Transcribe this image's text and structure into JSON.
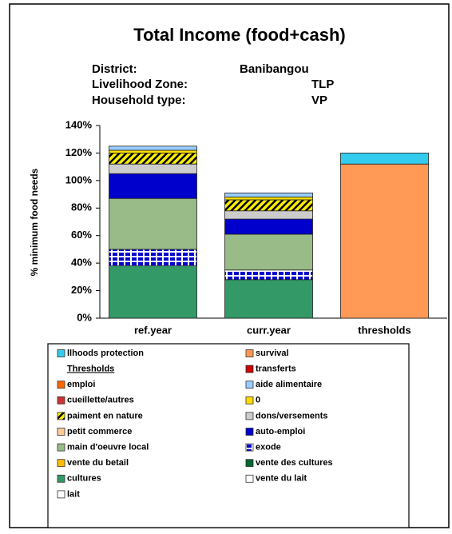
{
  "chart_data": {
    "type": "stacked_bar",
    "title": "Total Income (food+cash)",
    "info": [
      {
        "label": "District:",
        "value": "Banibangou"
      },
      {
        "label": "Livelihood Zone:",
        "value": "TLP"
      },
      {
        "label": "Household type:",
        "value": "VP"
      }
    ],
    "y_label": "% minimum food needs",
    "categories": [
      "ref.year",
      "curr.year",
      "thresholds"
    ],
    "ylim": [
      0,
      140
    ],
    "yticks": [
      {
        "value": 0,
        "label": "0%"
      },
      {
        "value": 20,
        "label": "20%"
      },
      {
        "value": 40,
        "label": "40%"
      },
      {
        "value": 60,
        "label": "60%"
      },
      {
        "value": 80,
        "label": "80%"
      },
      {
        "value": 100,
        "label": "100%"
      },
      {
        "value": 120,
        "label": "120%"
      },
      {
        "value": 140,
        "label": "140%"
      }
    ],
    "legend_heading": "Thresholds",
    "series": [
      {
        "name": "llhoods protection",
        "color": "#33ccee",
        "values": [
          0,
          0,
          8
        ]
      },
      {
        "name": "survival",
        "color": "#ff9955",
        "values": [
          0,
          0,
          112
        ]
      },
      {
        "name": "transferts",
        "color": "#cc0000",
        "values": [
          0,
          0,
          0
        ]
      },
      {
        "name": "emploi",
        "color": "#ff6600",
        "values": [
          0,
          0,
          0
        ]
      },
      {
        "name": "aide alimentaire",
        "color": "#99ccff",
        "values": [
          3,
          3,
          0
        ]
      },
      {
        "name": "cueillette/autres",
        "color": "#cc3333",
        "values": [
          0,
          0,
          0
        ]
      },
      {
        "name": "0",
        "color": "#ffdd00",
        "values": [
          2,
          2,
          0
        ]
      },
      {
        "name": "paiment en nature",
        "color": "#ffee00",
        "pattern": "diagonal",
        "values": [
          8,
          8,
          0
        ]
      },
      {
        "name": "dons/versements",
        "color": "#cccccc",
        "values": [
          7,
          6,
          0
        ]
      },
      {
        "name": "petit commerce",
        "color": "#ffcc99",
        "values": [
          0,
          0,
          0
        ]
      },
      {
        "name": "auto-emploi",
        "color": "#0000cc",
        "values": [
          18,
          11,
          0
        ]
      },
      {
        "name": "main d'oeuvre local",
        "color": "#99bb88",
        "values": [
          37,
          26,
          0
        ]
      },
      {
        "name": "exode",
        "color": "#0000cc",
        "pattern": "grid",
        "values": [
          12,
          7,
          0
        ]
      },
      {
        "name": "vente du betail",
        "color": "#ffbb00",
        "values": [
          0,
          0,
          0
        ]
      },
      {
        "name": "vente des cultures",
        "color": "#006633",
        "values": [
          0,
          0,
          0
        ]
      },
      {
        "name": "cultures",
        "color": "#339966",
        "values": [
          38,
          28,
          0
        ]
      },
      {
        "name": "vente du lait",
        "color": "#ffffff",
        "values": [
          0,
          0,
          0
        ]
      },
      {
        "name": "lait",
        "color": "#ffffff",
        "values": [
          0,
          0,
          0
        ]
      }
    ]
  }
}
